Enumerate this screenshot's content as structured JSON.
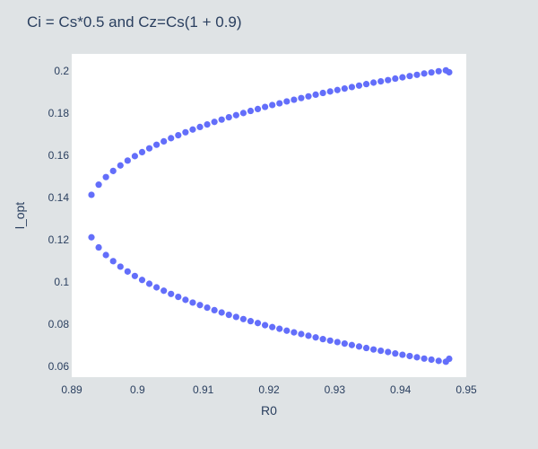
{
  "chart_data": {
    "type": "scatter",
    "title": "Ci = Cs*0.5 and Cz=Cs(1 + 0.9)",
    "xlabel": "R0",
    "ylabel": "l_opt",
    "xlim": [
      0.89,
      0.95
    ],
    "ylim": [
      0.055,
      0.208
    ],
    "xticks": [
      0.89,
      0.9,
      0.91,
      0.92,
      0.93,
      0.94,
      0.95
    ],
    "xtick_labels": [
      "0.89",
      "0.9",
      "0.91",
      "0.92",
      "0.93",
      "0.94",
      "0.95"
    ],
    "yticks": [
      0.06,
      0.08,
      0.1,
      0.12,
      0.14,
      0.16,
      0.18,
      0.2
    ],
    "ytick_labels": [
      "0.06",
      "0.08",
      "0.1",
      "0.12",
      "0.14",
      "0.16",
      "0.18",
      "0.2"
    ],
    "grid": false,
    "colors": {
      "marker": "#636efa",
      "plot_bg": "#ffffff",
      "paper_bg": "#dfe3e5",
      "text": "#2a3f5f"
    },
    "series": [
      {
        "x": [
          0.893,
          0.8941,
          0.8952,
          0.8963,
          0.8974,
          0.8985,
          0.8996,
          0.9007,
          0.9018,
          0.9029,
          0.904,
          0.9051,
          0.9062,
          0.9073,
          0.9084,
          0.9095,
          0.9106,
          0.9117,
          0.9128,
          0.9139,
          0.915,
          0.9161,
          0.9172,
          0.9183,
          0.9194,
          0.9205,
          0.9216,
          0.9227,
          0.9238,
          0.9249,
          0.926,
          0.9271,
          0.9282,
          0.9293,
          0.9304,
          0.9315,
          0.9326,
          0.9337,
          0.9348,
          0.9359,
          0.937,
          0.9381,
          0.9392,
          0.9403,
          0.9414,
          0.9425,
          0.9436,
          0.9447,
          0.9458,
          0.9469,
          0.9474
        ],
        "values": [
          0.1413,
          0.1461,
          0.1497,
          0.1526,
          0.1552,
          0.1575,
          0.1596,
          0.1615,
          0.1633,
          0.165,
          0.1666,
          0.1681,
          0.1695,
          0.1709,
          0.1722,
          0.1734,
          0.1746,
          0.1758,
          0.1769,
          0.178,
          0.179,
          0.18,
          0.181,
          0.1819,
          0.1829,
          0.1838,
          0.1846,
          0.1855,
          0.1863,
          0.1871,
          0.1879,
          0.1887,
          0.1895,
          0.1902,
          0.1909,
          0.1916,
          0.1923,
          0.193,
          0.1937,
          0.1944,
          0.195,
          0.1956,
          0.1963,
          0.1969,
          0.1975,
          0.1981,
          0.1987,
          0.1992,
          0.1998,
          0.2002,
          0.1993
        ]
      },
      {
        "x": [
          0.893,
          0.8941,
          0.8952,
          0.8963,
          0.8974,
          0.8985,
          0.8996,
          0.9007,
          0.9018,
          0.9029,
          0.904,
          0.9051,
          0.9062,
          0.9073,
          0.9084,
          0.9095,
          0.9106,
          0.9117,
          0.9128,
          0.9139,
          0.915,
          0.9161,
          0.9172,
          0.9183,
          0.9194,
          0.9205,
          0.9216,
          0.9227,
          0.9238,
          0.9249,
          0.926,
          0.9271,
          0.9282,
          0.9293,
          0.9304,
          0.9315,
          0.9326,
          0.9337,
          0.9348,
          0.9359,
          0.937,
          0.9381,
          0.9392,
          0.9403,
          0.9414,
          0.9425,
          0.9436,
          0.9447,
          0.9458,
          0.9469,
          0.9474
        ],
        "values": [
          0.1212,
          0.1164,
          0.1128,
          0.1099,
          0.1073,
          0.105,
          0.1029,
          0.101,
          0.0992,
          0.0975,
          0.0959,
          0.0944,
          0.093,
          0.0916,
          0.0903,
          0.0891,
          0.0879,
          0.0867,
          0.0856,
          0.0845,
          0.0835,
          0.0825,
          0.0815,
          0.0806,
          0.0796,
          0.0787,
          0.0779,
          0.077,
          0.0762,
          0.0754,
          0.0746,
          0.0738,
          0.073,
          0.0723,
          0.0716,
          0.0709,
          0.0702,
          0.0695,
          0.0688,
          0.0681,
          0.0675,
          0.0669,
          0.0662,
          0.0656,
          0.065,
          0.0644,
          0.0638,
          0.0633,
          0.0627,
          0.0623,
          0.0637
        ]
      }
    ]
  }
}
